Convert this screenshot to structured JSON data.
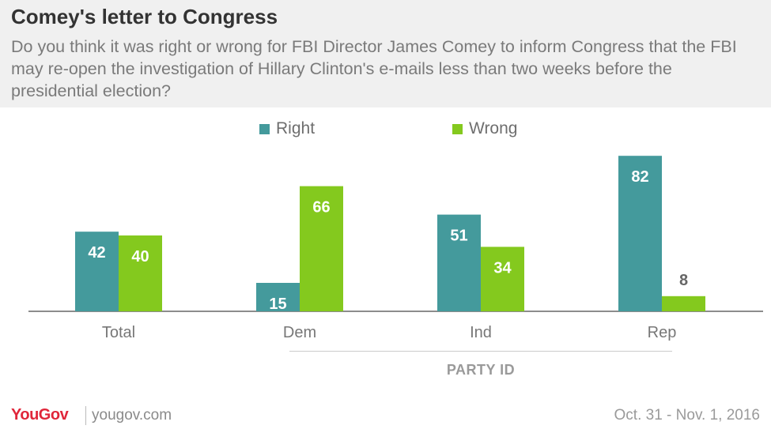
{
  "header": {
    "title": "Comey's letter to Congress",
    "subtitle": "Do you think it was right or wrong for FBI Director James Comey to inform Congress that the FBI may re-open the investigation of Hillary Clinton's e-mails less than two weeks before the presidential election?"
  },
  "legend": {
    "right_label": "Right",
    "wrong_label": "Wrong"
  },
  "colors": {
    "right": "#449a9c",
    "wrong": "#84c91e",
    "header_bg": "#f0f0f0",
    "brand": "#e0263a"
  },
  "chart_data": {
    "type": "bar",
    "title": "Comey's letter to Congress",
    "categories": [
      "Total",
      "Dem",
      "Ind",
      "Rep"
    ],
    "series": [
      {
        "name": "Right",
        "values": [
          42,
          15,
          51,
          82
        ]
      },
      {
        "name": "Wrong",
        "values": [
          40,
          66,
          34,
          8
        ]
      }
    ],
    "group_label": "PARTY ID",
    "ylim": [
      0,
      85
    ],
    "grid": false,
    "legend_position": "top-center"
  },
  "footer": {
    "logo": "YouGov",
    "site": "yougov.com",
    "date": "Oct. 31 - Nov. 1, 2016"
  }
}
